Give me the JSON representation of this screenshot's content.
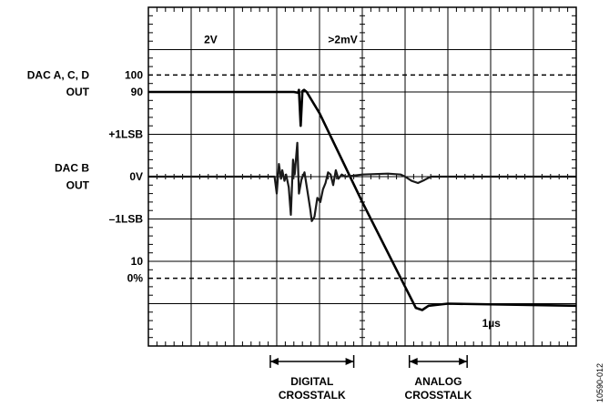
{
  "chart_data": {
    "type": "line",
    "title": "",
    "grid": true,
    "divisions": {
      "x": 10,
      "y": 8
    },
    "scale_labels": {
      "ch1": "2V",
      "ch2": ">2mV",
      "time": "1µs"
    },
    "y_markers": [
      {
        "text": "100",
        "div": 1.6
      },
      {
        "text": "90",
        "div": 2.0
      },
      {
        "text": "+1LSB",
        "div": 3.0
      },
      {
        "text": "0V",
        "div": 4.0
      },
      {
        "text": "–1LSB",
        "div": 5.0
      },
      {
        "text": "10",
        "div": 6.0
      },
      {
        "text": "0%",
        "div": 6.4
      }
    ],
    "reference_lines": [
      {
        "label": "100",
        "div": 1.6,
        "style": "dashed"
      },
      {
        "label": "0%",
        "div": 6.4,
        "style": "dashed"
      }
    ],
    "series": [
      {
        "name": "DAC A, C, D OUT",
        "points": [
          [
            0,
            2.0
          ],
          [
            3.4,
            2.0
          ],
          [
            3.5,
            2.02
          ],
          [
            3.52,
            1.95
          ],
          [
            3.56,
            2.8
          ],
          [
            3.6,
            1.98
          ],
          [
            3.64,
            1.95
          ],
          [
            3.7,
            2.0
          ],
          [
            4.0,
            2.5
          ],
          [
            5.0,
            4.6
          ],
          [
            6.0,
            6.6
          ],
          [
            6.25,
            7.1
          ],
          [
            6.4,
            7.15
          ],
          [
            6.55,
            7.05
          ],
          [
            7.0,
            7.0
          ],
          [
            10,
            7.05
          ]
        ]
      },
      {
        "name": "DAC B OUT",
        "points": [
          [
            0,
            4.0
          ],
          [
            2.8,
            4.0
          ],
          [
            2.95,
            4.0
          ],
          [
            3.0,
            4.4
          ],
          [
            3.05,
            3.7
          ],
          [
            3.1,
            4.05
          ],
          [
            3.13,
            3.85
          ],
          [
            3.18,
            4.1
          ],
          [
            3.22,
            3.95
          ],
          [
            3.28,
            4.25
          ],
          [
            3.33,
            4.9
          ],
          [
            3.38,
            3.6
          ],
          [
            3.42,
            3.95
          ],
          [
            3.48,
            3.2
          ],
          [
            3.52,
            4.4
          ],
          [
            3.58,
            4.05
          ],
          [
            3.65,
            3.9
          ],
          [
            3.72,
            4.35
          ],
          [
            3.78,
            4.75
          ],
          [
            3.82,
            5.05
          ],
          [
            3.88,
            4.95
          ],
          [
            3.95,
            4.5
          ],
          [
            4.02,
            4.6
          ],
          [
            4.08,
            4.3
          ],
          [
            4.14,
            4.15
          ],
          [
            4.2,
            3.9
          ],
          [
            4.26,
            3.95
          ],
          [
            4.32,
            4.2
          ],
          [
            4.38,
            3.85
          ],
          [
            4.44,
            4.05
          ],
          [
            4.52,
            3.95
          ],
          [
            4.6,
            4.0
          ],
          [
            5.0,
            3.95
          ],
          [
            5.6,
            3.93
          ],
          [
            5.9,
            3.95
          ],
          [
            6.0,
            4.0
          ],
          [
            6.15,
            4.1
          ],
          [
            6.3,
            4.15
          ],
          [
            6.45,
            4.08
          ],
          [
            6.6,
            4.0
          ],
          [
            7.0,
            4.0
          ],
          [
            10,
            4.0
          ]
        ]
      }
    ],
    "crosstalk_ranges": [
      {
        "label_line1": "DIGITAL",
        "label_line2": "CROSSTALK",
        "from_div": 2.85,
        "to_div": 4.8
      },
      {
        "label_line1": "ANALOG",
        "label_line2": "CROSSTALK",
        "from_div": 6.1,
        "to_div": 7.45
      }
    ],
    "channel_labels": [
      {
        "line1": "DAC A, C, D",
        "line2": "OUT"
      },
      {
        "line1": "DAC B",
        "line2": "OUT"
      }
    ]
  },
  "figure_id": "10590-012"
}
